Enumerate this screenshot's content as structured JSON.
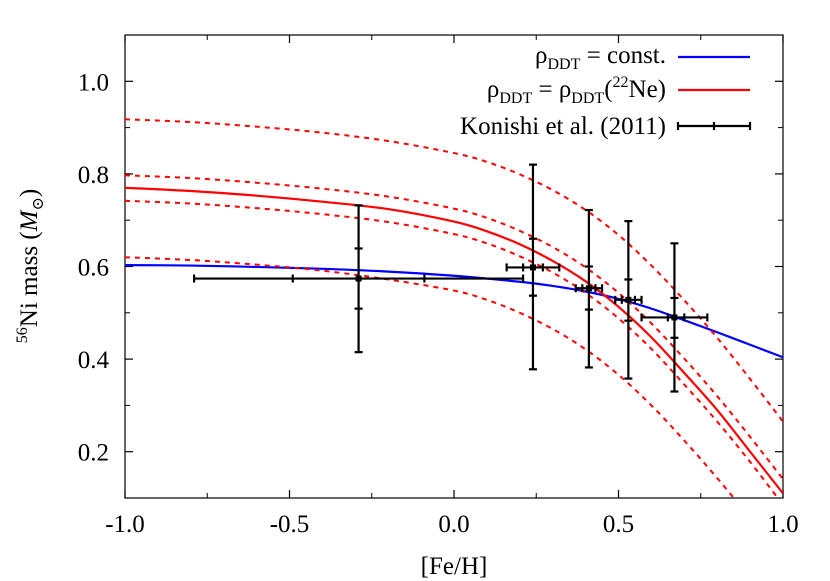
{
  "chart_data": {
    "type": "line",
    "xlabel": "[Fe/H]",
    "ylabel": {
      "prefix_sup": "56",
      "main": "Ni mass (",
      "symbol": "M",
      "symbol_sub": "⊙",
      "suffix": ")"
    },
    "xlim": [
      -1.0,
      1.0
    ],
    "ylim": [
      0.1,
      1.1
    ],
    "xticks": [
      {
        "value": -1.0,
        "label": "-1.0"
      },
      {
        "value": -0.5,
        "label": "-0.5"
      },
      {
        "value": 0.0,
        "label": "0.0"
      },
      {
        "value": 0.5,
        "label": "0.5"
      },
      {
        "value": 1.0,
        "label": "1.0"
      }
    ],
    "yticks": [
      {
        "value": 0.2,
        "label": "0.2"
      },
      {
        "value": 0.4,
        "label": "0.4"
      },
      {
        "value": 0.6,
        "label": "0.6"
      },
      {
        "value": 0.8,
        "label": "0.8"
      },
      {
        "value": 1.0,
        "label": "1.0"
      }
    ],
    "grid": false,
    "legend_position": "top-right",
    "legend": [
      {
        "text_main": "ρ",
        "text_sub": "DDT",
        "text_rest": " = const.",
        "color": "#0000ff",
        "style": "solid"
      },
      {
        "text_main": "ρ",
        "text_sub": "DDT",
        "text_mid": " = ρ",
        "text_sub2": "DDT",
        "text_open": "(",
        "text_sup": "22",
        "text_close": "Ne)",
        "color": "#ff0000",
        "style": "solid"
      },
      {
        "text": "Konishi et al. (2011)",
        "color": "#000000",
        "style": "errorbar"
      }
    ],
    "series": [
      {
        "color": "#0000ff",
        "style": "solid",
        "x": [
          -1.0,
          -0.8,
          -0.6,
          -0.4,
          -0.2,
          0.0,
          0.2,
          0.3,
          0.4,
          0.5,
          0.6,
          0.7,
          0.8,
          0.9,
          1.0
        ],
        "y": [
          0.603,
          0.602,
          0.599,
          0.595,
          0.589,
          0.58,
          0.567,
          0.558,
          0.546,
          0.53,
          0.509,
          0.484,
          0.458,
          0.431,
          0.404
        ]
      },
      {
        "color": "#ff0000",
        "style": "solid",
        "x": [
          -1.0,
          -0.8,
          -0.6,
          -0.4,
          -0.2,
          0.0,
          0.1,
          0.2,
          0.3,
          0.4,
          0.5,
          0.6,
          0.7,
          0.8,
          0.9,
          1.0
        ],
        "y": [
          0.77,
          0.763,
          0.753,
          0.74,
          0.724,
          0.697,
          0.676,
          0.648,
          0.612,
          0.568,
          0.513,
          0.447,
          0.37,
          0.29,
          0.2,
          0.11
        ]
      },
      {
        "color": "#ff0000",
        "style": "dashed",
        "x": [
          -1.0,
          -0.8,
          -0.6,
          -0.4,
          -0.2,
          0.0,
          0.1,
          0.2,
          0.3,
          0.4,
          0.5,
          0.6,
          0.7,
          0.8,
          0.9,
          1.0
        ],
        "y": [
          0.918,
          0.912,
          0.902,
          0.889,
          0.871,
          0.845,
          0.826,
          0.799,
          0.765,
          0.722,
          0.668,
          0.602,
          0.527,
          0.446,
          0.357,
          0.265
        ]
      },
      {
        "color": "#ff0000",
        "style": "dashed",
        "x": [
          -1.0,
          -0.8,
          -0.6,
          -0.4,
          -0.2,
          0.0,
          0.1,
          0.2,
          0.3,
          0.4,
          0.5,
          0.6,
          0.7,
          0.8,
          0.9,
          1.0
        ],
        "y": [
          0.797,
          0.791,
          0.781,
          0.768,
          0.751,
          0.725,
          0.705,
          0.677,
          0.642,
          0.598,
          0.543,
          0.477,
          0.401,
          0.32,
          0.232,
          0.141
        ]
      },
      {
        "color": "#ff0000",
        "style": "dashed",
        "x": [
          -1.0,
          -0.8,
          -0.6,
          -0.4,
          -0.2,
          0.0,
          0.1,
          0.2,
          0.3,
          0.4,
          0.5,
          0.6,
          0.7,
          0.8,
          0.9,
          1.0
        ],
        "y": [
          0.742,
          0.736,
          0.726,
          0.713,
          0.696,
          0.67,
          0.65,
          0.622,
          0.587,
          0.543,
          0.488,
          0.422,
          0.345,
          0.265,
          0.178,
          0.085
        ]
      },
      {
        "color": "#ff0000",
        "style": "dashed",
        "x": [
          -1.0,
          -0.8,
          -0.6,
          -0.4,
          -0.2,
          0.0,
          0.1,
          0.2,
          0.3,
          0.4,
          0.5,
          0.6,
          0.7,
          0.8,
          0.9
        ],
        "y": [
          0.62,
          0.614,
          0.604,
          0.591,
          0.572,
          0.548,
          0.528,
          0.5,
          0.465,
          0.421,
          0.366,
          0.3,
          0.224,
          0.143,
          0.057
        ]
      }
    ],
    "points": [
      {
        "x": -0.29,
        "y": 0.574,
        "xlo": -0.79,
        "xhi": 0.21,
        "xinner_lo": -0.49,
        "xinner_hi": -0.09,
        "ylo": 0.415,
        "yhi": 0.732,
        "yinner_lo": 0.509,
        "yinner_hi": 0.639
      },
      {
        "x": 0.24,
        "y": 0.598,
        "xlo": 0.16,
        "xhi": 0.32,
        "xinner_lo": 0.21,
        "xinner_hi": 0.27,
        "ylo": 0.378,
        "yhi": 0.82,
        "yinner_lo": 0.537,
        "yinner_hi": 0.66
      },
      {
        "x": 0.41,
        "y": 0.553,
        "xlo": 0.37,
        "xhi": 0.45,
        "xinner_lo": 0.39,
        "xinner_hi": 0.43,
        "ylo": 0.382,
        "yhi": 0.722,
        "yinner_lo": 0.507,
        "yinner_hi": 0.6
      },
      {
        "x": 0.53,
        "y": 0.528,
        "xlo": 0.49,
        "xhi": 0.57,
        "xinner_lo": 0.51,
        "xinner_hi": 0.55,
        "ylo": 0.358,
        "yhi": 0.698,
        "yinner_lo": 0.483,
        "yinner_hi": 0.572
      },
      {
        "x": 0.67,
        "y": 0.49,
        "xlo": 0.57,
        "xhi": 0.77,
        "xinner_lo": 0.65,
        "xinner_hi": 0.7,
        "ylo": 0.33,
        "yhi": 0.65,
        "yinner_lo": 0.446,
        "yinner_hi": 0.532
      }
    ]
  }
}
